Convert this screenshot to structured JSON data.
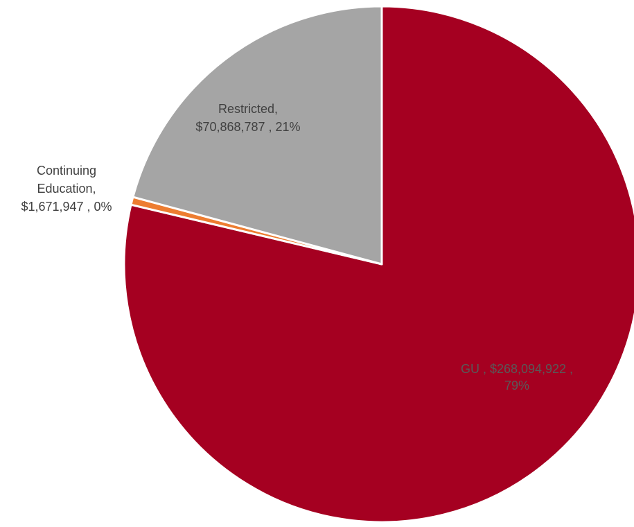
{
  "chart_data": {
    "type": "pie",
    "title": "",
    "slices": [
      {
        "label": "GU",
        "value": 268094922,
        "value_text": "$268,094,922",
        "percent": 79,
        "color": "#A50021",
        "label_color": "#595959",
        "label_lines": [
          "GU ,  $268,094,922 ,",
          "79%"
        ]
      },
      {
        "label": "Continuing Education",
        "value": 1671947,
        "value_text": "$1,671,947",
        "percent": 0,
        "color": "#ED7D31",
        "label_color": "#404040",
        "label_lines": [
          "Continuing",
          "Education,",
          "$1,671,947 , 0%"
        ]
      },
      {
        "label": "Restricted",
        "value": 70868787,
        "value_text": "$70,868,787",
        "percent": 21,
        "color": "#A5A5A5",
        "label_color": "#404040",
        "label_lines": [
          "Restricted,",
          "$70,868,787 , 21%"
        ]
      }
    ],
    "start_angle": "12 o'clock",
    "direction": "clockwise",
    "legend": "none",
    "separator_color": "#ffffff"
  }
}
